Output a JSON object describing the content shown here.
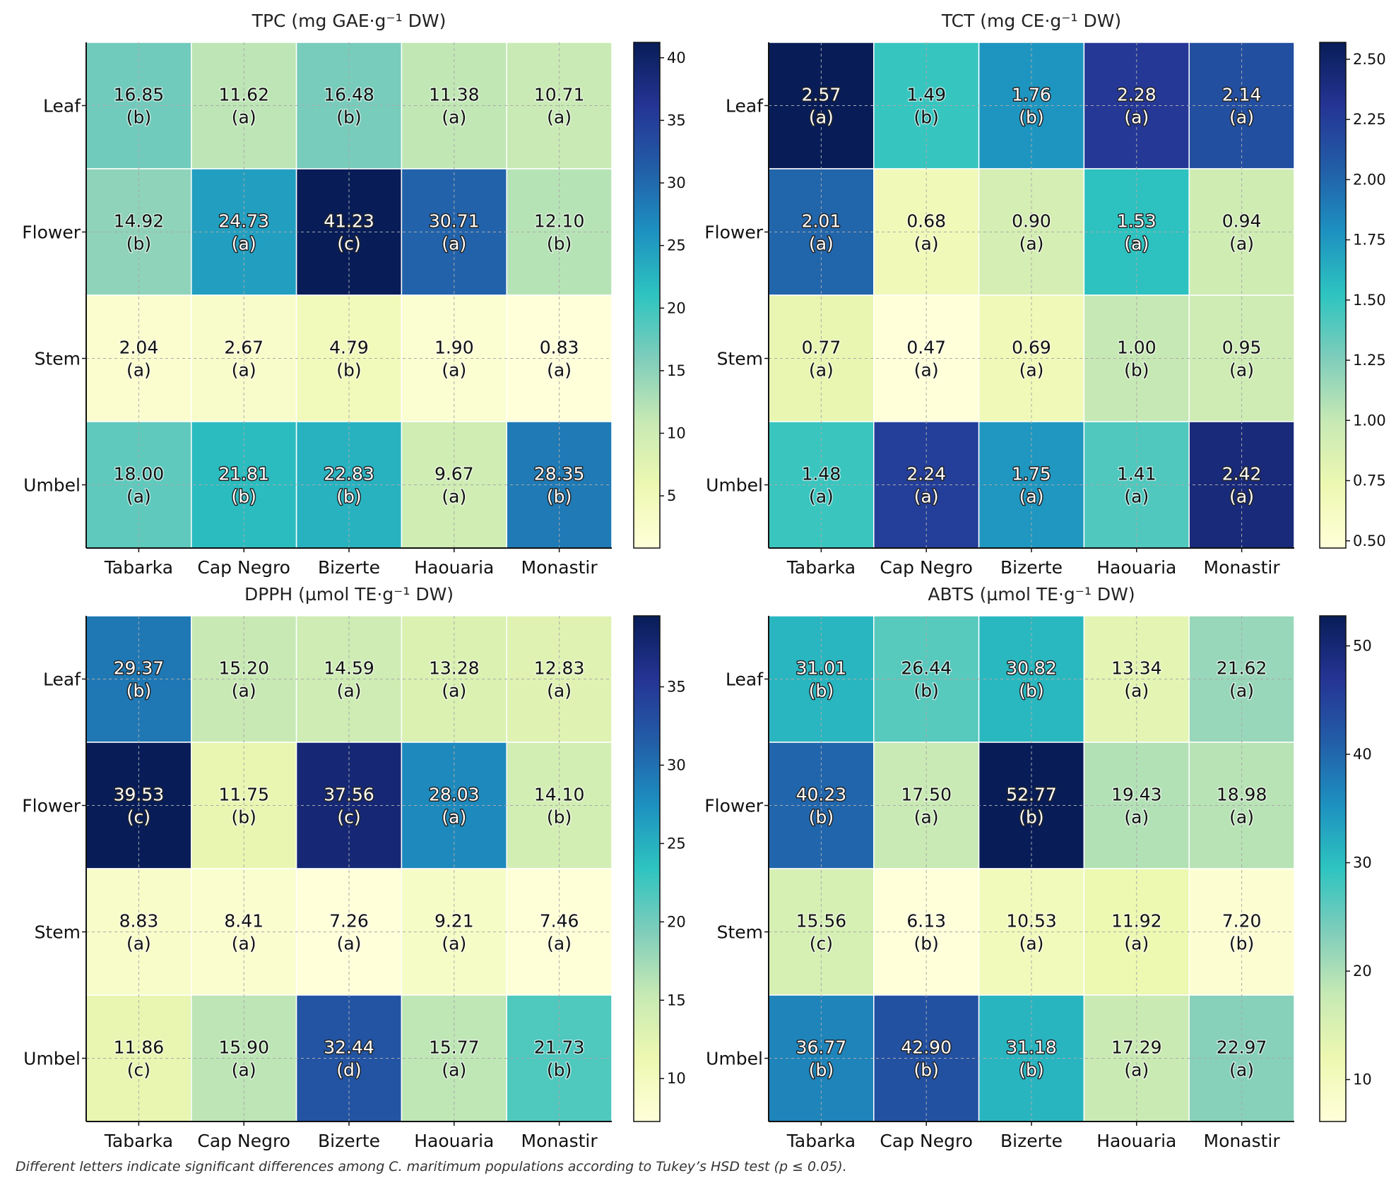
{
  "chart_data": [
    {
      "type": "heatmap",
      "title": "TPC (mg GAE·g⁻¹ DW)",
      "rows": [
        "Leaf",
        "Flower",
        "Stem",
        "Umbel"
      ],
      "columns": [
        "Tabarka",
        "Cap Negro",
        "Bizerte",
        "Haouaria",
        "Monastir"
      ],
      "values": [
        [
          16.85,
          11.62,
          16.48,
          11.38,
          10.71
        ],
        [
          14.92,
          24.73,
          41.23,
          30.71,
          12.1
        ],
        [
          2.04,
          2.67,
          4.79,
          1.9,
          0.83
        ],
        [
          18.0,
          21.81,
          22.83,
          9.67,
          28.35
        ]
      ],
      "letters": [
        [
          "b",
          "a",
          "b",
          "a",
          "a"
        ],
        [
          "b",
          "a",
          "c",
          "a",
          "b"
        ],
        [
          "a",
          "a",
          "b",
          "a",
          "a"
        ],
        [
          "a",
          "b",
          "b",
          "a",
          "b"
        ]
      ],
      "colorbar": {
        "range": [
          0.83,
          41.23
        ],
        "ticks": [
          "5",
          "10",
          "15",
          "20",
          "25",
          "30",
          "35",
          "40"
        ]
      },
      "colormap": "YlGnBu"
    },
    {
      "type": "heatmap",
      "title": "TCT (mg CE·g⁻¹ DW)",
      "rows": [
        "Leaf",
        "Flower",
        "Stem",
        "Umbel"
      ],
      "columns": [
        "Tabarka",
        "Cap Negro",
        "Bizerte",
        "Haouaria",
        "Monastir"
      ],
      "values": [
        [
          2.57,
          1.49,
          1.76,
          2.28,
          2.14
        ],
        [
          2.01,
          0.68,
          0.9,
          1.53,
          0.94
        ],
        [
          0.77,
          0.47,
          0.69,
          1.0,
          0.95
        ],
        [
          1.48,
          2.24,
          1.75,
          1.41,
          2.42
        ]
      ],
      "letters": [
        [
          "a",
          "b",
          "b",
          "a",
          "a"
        ],
        [
          "a",
          "a",
          "a",
          "a",
          "a"
        ],
        [
          "a",
          "a",
          "a",
          "b",
          "a"
        ],
        [
          "a",
          "a",
          "a",
          "a",
          "a"
        ]
      ],
      "colorbar": {
        "range": [
          0.47,
          2.57
        ],
        "ticks": [
          "0.50",
          "0.75",
          "1.00",
          "1.25",
          "1.50",
          "1.75",
          "2.00",
          "2.25",
          "2.50"
        ]
      },
      "colormap": "YlGnBu"
    },
    {
      "type": "heatmap",
      "title": "DPPH (µmol TE·g⁻¹ DW)",
      "rows": [
        "Leaf",
        "Flower",
        "Stem",
        "Umbel"
      ],
      "columns": [
        "Tabarka",
        "Cap Negro",
        "Bizerte",
        "Haouaria",
        "Monastir"
      ],
      "values": [
        [
          29.37,
          15.2,
          14.59,
          13.28,
          12.83
        ],
        [
          39.53,
          11.75,
          37.56,
          28.03,
          14.1
        ],
        [
          8.83,
          8.41,
          7.26,
          9.21,
          7.46
        ],
        [
          11.86,
          15.9,
          32.44,
          15.77,
          21.73
        ]
      ],
      "letters": [
        [
          "b",
          "a",
          "a",
          "a",
          "a"
        ],
        [
          "c",
          "b",
          "c",
          "a",
          "b"
        ],
        [
          "a",
          "a",
          "a",
          "a",
          "a"
        ],
        [
          "c",
          "a",
          "d",
          "a",
          "b"
        ]
      ],
      "colorbar": {
        "range": [
          7.26,
          39.53
        ],
        "ticks": [
          "10",
          "15",
          "20",
          "25",
          "30",
          "35"
        ]
      },
      "colormap": "YlGnBu"
    },
    {
      "type": "heatmap",
      "title": "ABTS (µmol TE·g⁻¹ DW)",
      "rows": [
        "Leaf",
        "Flower",
        "Stem",
        "Umbel"
      ],
      "columns": [
        "Tabarka",
        "Cap Negro",
        "Bizerte",
        "Haouaria",
        "Monastir"
      ],
      "values": [
        [
          31.01,
          26.44,
          30.82,
          13.34,
          21.62
        ],
        [
          40.23,
          17.5,
          52.77,
          19.43,
          18.98
        ],
        [
          15.56,
          6.13,
          10.53,
          11.92,
          7.2
        ],
        [
          36.77,
          42.9,
          31.18,
          17.29,
          22.97
        ]
      ],
      "letters": [
        [
          "b",
          "b",
          "b",
          "a",
          "a"
        ],
        [
          "b",
          "a",
          "b",
          "a",
          "a"
        ],
        [
          "c",
          "b",
          "a",
          "a",
          "b"
        ],
        [
          "b",
          "b",
          "b",
          "a",
          "a"
        ]
      ],
      "colorbar": {
        "range": [
          6.13,
          52.77
        ],
        "ticks": [
          "10",
          "20",
          "30",
          "40",
          "50"
        ]
      },
      "colormap": "YlGnBu"
    }
  ],
  "footnote": "Different letters indicate significant differences among C. maritimum populations according to Tukey’s HSD test (p ≤ 0.05)."
}
